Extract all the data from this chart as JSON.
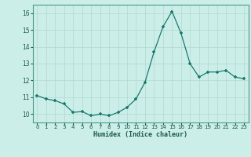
{
  "x": [
    0,
    1,
    2,
    3,
    4,
    5,
    6,
    7,
    8,
    9,
    10,
    11,
    12,
    13,
    14,
    15,
    16,
    17,
    18,
    19,
    20,
    21,
    22,
    23
  ],
  "y": [
    11.1,
    10.9,
    10.8,
    10.6,
    10.1,
    10.15,
    9.9,
    10.0,
    9.9,
    10.1,
    10.4,
    10.9,
    11.9,
    13.7,
    15.2,
    16.1,
    14.8,
    13.0,
    12.2,
    12.5,
    12.5,
    12.6,
    12.2,
    12.1
  ],
  "line_color": "#1a7a6e",
  "marker_color": "#1a7a6e",
  "bg_color": "#cceee8",
  "grid_color": "#b0d8d0",
  "xlabel": "Humidex (Indice chaleur)",
  "xlim": [
    -0.5,
    23.5
  ],
  "ylim": [
    9.5,
    16.5
  ],
  "yticks": [
    10,
    11,
    12,
    13,
    14,
    15,
    16
  ],
  "xticks": [
    0,
    1,
    2,
    3,
    4,
    5,
    6,
    7,
    8,
    9,
    10,
    11,
    12,
    13,
    14,
    15,
    16,
    17,
    18,
    19,
    20,
    21,
    22,
    23
  ],
  "spine_color": "#4a9a8a",
  "xlabel_color": "#1a5a50",
  "tick_color": "#1a5a50"
}
